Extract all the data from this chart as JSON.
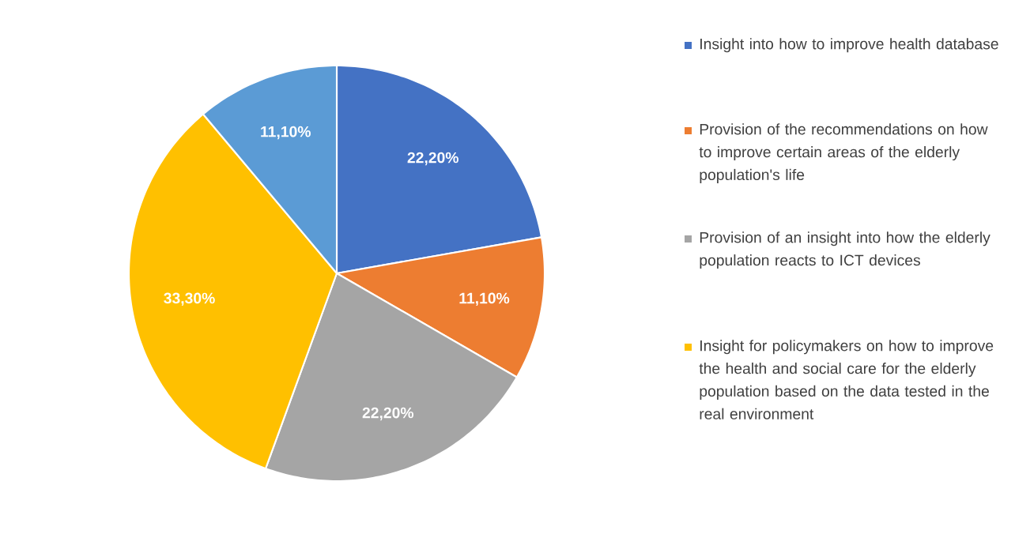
{
  "chart_data": {
    "type": "pie",
    "categories": [
      "Insight into how to improve health database",
      "Provision of the recommendations on how to improve certain areas of the elderly population's life",
      "Provision of an insight into how the elderly population reacts to ICT devices",
      "Insight for policymakers on how to improve the health and social care for the elderly population based on the data tested in the real environment",
      null
    ],
    "values": [
      22.2,
      11.1,
      22.2,
      33.3,
      11.1
    ],
    "value_labels": [
      "22,20%",
      "11,10%",
      "22,20%",
      "33,30%",
      "11,10%"
    ],
    "colors": [
      "#4472c4",
      "#ed7d31",
      "#a5a5a5",
      "#ffc000",
      "#5b9bd5"
    ],
    "legend": "right"
  }
}
